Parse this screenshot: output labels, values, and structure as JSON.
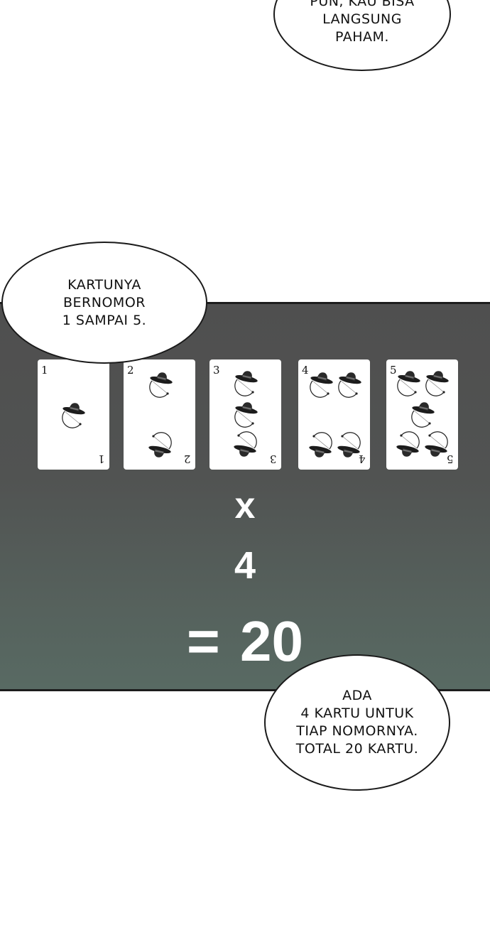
{
  "bubbles": {
    "top": {
      "lines": [
        "PUN, KAU BISA",
        "LANGSUNG",
        "PAHAM."
      ]
    },
    "left": {
      "lines": [
        "KARTUNYA",
        "BERNOMOR",
        "1 SAMPAI 5."
      ]
    },
    "bottom": {
      "lines": [
        "ADA",
        "4 KARTU UNTUK",
        "TIAP NOMORNYA.",
        "TOTAL 20 KARTU."
      ]
    }
  },
  "cards": [
    {
      "number": "1",
      "icon": "hat-bow-icon",
      "count": 1
    },
    {
      "number": "2",
      "icon": "hat-bow-icon",
      "count": 2
    },
    {
      "number": "3",
      "icon": "hat-bow-icon",
      "count": 3
    },
    {
      "number": "4",
      "icon": "hat-bow-icon",
      "count": 4
    },
    {
      "number": "5",
      "icon": "hat-bow-icon",
      "count": 5
    }
  ],
  "equation": {
    "operator": "x",
    "multiplier": "4",
    "result": "= 20"
  },
  "colors": {
    "panel_top": "#4f4f4f",
    "panel_bottom": "#586a63",
    "text_light": "#ffffff",
    "outline": "#1a1a1a"
  }
}
